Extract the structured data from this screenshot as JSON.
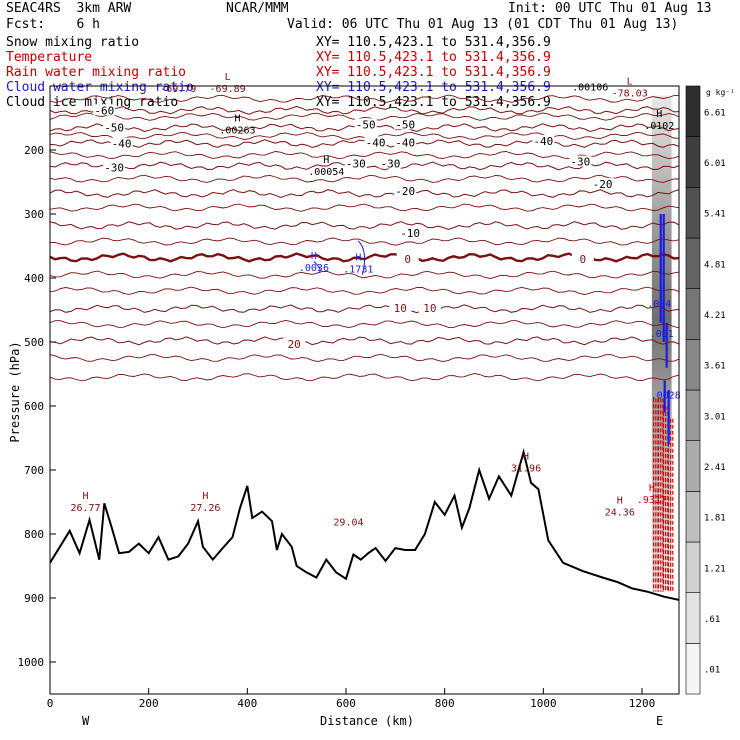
{
  "header": {
    "model_line": "SEAC4RS  3km ARW",
    "center": "NCAR/MMM",
    "init": "Init: 00 UTC Thu 01 Aug 13",
    "fcst": "Fcst:    6 h",
    "valid": "Valid: 06 UTC Thu 01 Aug 13 (01 CDT Thu 01 Aug 13)"
  },
  "fields": [
    {
      "label": "Snow mixing ratio",
      "xy": "XY= 110.5,423.1 to 531.4,356.9",
      "color": "#000000"
    },
    {
      "label": "Temperature",
      "xy": "XY= 110.5,423.1 to 531.4,356.9",
      "color": "#c00000"
    },
    {
      "label": "Rain water mixing ratio",
      "xy": "XY= 110.5,423.1 to 531.4,356.9",
      "color": "#c00000"
    },
    {
      "label": "Cloud water mixing ratio",
      "xy": "XY= 110.5,423.1 to 531.4,356.9",
      "color": "#1a1acc"
    },
    {
      "label": "Cloud ice mixing ratio",
      "xy": "XY= 110.5,423.1 to 531.4,356.9",
      "color": "#000000"
    }
  ],
  "colors": {
    "temperature": "#7a1010",
    "zero_isotherm": "#7a1010",
    "rain": "#d00000",
    "cloud_water": "#1a1ae0",
    "terrain": "#000000",
    "axis": "#000000"
  },
  "chart_data": {
    "type": "contour",
    "xlabel": "Distance (km)",
    "ylabel": "Pressure (hPa)",
    "xlim": [
      0,
      1275
    ],
    "ylim": [
      100,
      1050
    ],
    "x_ticks": [
      0,
      200,
      400,
      600,
      800,
      1000,
      1200
    ],
    "y_ticks": [
      200,
      300,
      400,
      500,
      600,
      700,
      800,
      900,
      1000
    ],
    "y_scale": "pressure (increasing downward)",
    "west_label": "W",
    "east_label": "E",
    "colorbar": {
      "unit": "g kg⁻¹",
      "labels": [
        ".01",
        ".61",
        "1.21",
        "1.81",
        "2.41",
        "3.01",
        "3.61",
        "4.21",
        "4.81",
        "5.41",
        "6.01",
        "6.61"
      ]
    },
    "temperature_contours": [
      {
        "value": -60,
        "p": 138
      },
      {
        "value": -50,
        "p": 165
      },
      {
        "value": -40,
        "p": 190
      },
      {
        "value": -30,
        "p": 225
      },
      {
        "value": -20,
        "p": 268
      },
      {
        "value": -10,
        "p": 318
      },
      {
        "value": 0,
        "p": 368
      },
      {
        "value": 10,
        "p": 448
      },
      {
        "value": 20,
        "p": 498
      }
    ],
    "temperature_labels": [
      {
        "text": "-60",
        "x": 110,
        "p": 138
      },
      {
        "text": "-50",
        "x": 130,
        "p": 165
      },
      {
        "text": "-40",
        "x": 145,
        "p": 190
      },
      {
        "text": "-30",
        "x": 130,
        "p": 227
      },
      {
        "text": "-50",
        "x": 640,
        "p": 160
      },
      {
        "text": "-50",
        "x": 720,
        "p": 160
      },
      {
        "text": "-40",
        "x": 660,
        "p": 188
      },
      {
        "text": "-40",
        "x": 720,
        "p": 188
      },
      {
        "text": "-40",
        "x": 1000,
        "p": 186
      },
      {
        "text": "-30",
        "x": 620,
        "p": 221
      },
      {
        "text": "-30",
        "x": 690,
        "p": 221
      },
      {
        "text": "-30",
        "x": 1075,
        "p": 218
      },
      {
        "text": "-20",
        "x": 720,
        "p": 264
      },
      {
        "text": "-20",
        "x": 1120,
        "p": 253
      },
      {
        "text": "-10",
        "x": 730,
        "p": 330
      },
      {
        "text": "0",
        "x": 725,
        "p": 370
      },
      {
        "text": "0",
        "x": 1080,
        "p": 370
      },
      {
        "text": "10",
        "x": 710,
        "p": 447
      },
      {
        "text": "10",
        "x": 770,
        "p": 447
      },
      {
        "text": "20",
        "x": 495,
        "p": 503
      }
    ],
    "extrema_labels": [
      {
        "mark": "L",
        "value": "-69.89",
        "x": 360,
        "p": 100
      },
      {
        "mark": "L",
        "value": "-78.03",
        "x": 1175,
        "p": 107
      },
      {
        "mark": "",
        "value": "-69.79",
        "x": 260,
        "p": 100
      },
      {
        "mark": "H",
        "value": ".00263",
        "x": 380,
        "p": 165
      },
      {
        "mark": "H",
        "value": ".00054",
        "x": 560,
        "p": 230
      },
      {
        "mark": "H",
        "value": ".0036",
        "x": 535,
        "p": 380
      },
      {
        "mark": "H",
        "value": ".1731",
        "x": 625,
        "p": 382
      },
      {
        "mark": "",
        "value": ".00106",
        "x": 1095,
        "p": 98
      },
      {
        "mark": "H",
        "value": ".0102",
        "x": 1235,
        "p": 158
      },
      {
        "mark": "H",
        "value": "26.77",
        "x": 72,
        "p": 755
      },
      {
        "mark": "H",
        "value": "27.26",
        "x": 315,
        "p": 755
      },
      {
        "mark": "",
        "value": "29.04",
        "x": 605,
        "p": 777
      },
      {
        "mark": "H",
        "value": "31.96",
        "x": 965,
        "p": 693
      },
      {
        "mark": "H",
        "value": "24.36",
        "x": 1155,
        "p": 762
      }
    ],
    "terrain_surface": [
      {
        "x": 0,
        "p": 845
      },
      {
        "x": 20,
        "p": 820
      },
      {
        "x": 40,
        "p": 795
      },
      {
        "x": 60,
        "p": 830
      },
      {
        "x": 80,
        "p": 778
      },
      {
        "x": 100,
        "p": 840
      },
      {
        "x": 110,
        "p": 752
      },
      {
        "x": 125,
        "p": 790
      },
      {
        "x": 140,
        "p": 830
      },
      {
        "x": 160,
        "p": 828
      },
      {
        "x": 180,
        "p": 815
      },
      {
        "x": 200,
        "p": 830
      },
      {
        "x": 220,
        "p": 805
      },
      {
        "x": 240,
        "p": 840
      },
      {
        "x": 260,
        "p": 835
      },
      {
        "x": 280,
        "p": 815
      },
      {
        "x": 300,
        "p": 780
      },
      {
        "x": 310,
        "p": 820
      },
      {
        "x": 330,
        "p": 840
      },
      {
        "x": 350,
        "p": 822
      },
      {
        "x": 370,
        "p": 805
      },
      {
        "x": 385,
        "p": 760
      },
      {
        "x": 400,
        "p": 725
      },
      {
        "x": 410,
        "p": 775
      },
      {
        "x": 430,
        "p": 765
      },
      {
        "x": 450,
        "p": 780
      },
      {
        "x": 460,
        "p": 825
      },
      {
        "x": 470,
        "p": 800
      },
      {
        "x": 490,
        "p": 820
      },
      {
        "x": 500,
        "p": 850
      },
      {
        "x": 520,
        "p": 860
      },
      {
        "x": 540,
        "p": 868
      },
      {
        "x": 560,
        "p": 840
      },
      {
        "x": 580,
        "p": 860
      },
      {
        "x": 600,
        "p": 870
      },
      {
        "x": 615,
        "p": 832
      },
      {
        "x": 630,
        "p": 840
      },
      {
        "x": 645,
        "p": 830
      },
      {
        "x": 660,
        "p": 822
      },
      {
        "x": 680,
        "p": 842
      },
      {
        "x": 700,
        "p": 822
      },
      {
        "x": 720,
        "p": 825
      },
      {
        "x": 740,
        "p": 825
      },
      {
        "x": 760,
        "p": 800
      },
      {
        "x": 780,
        "p": 750
      },
      {
        "x": 800,
        "p": 770
      },
      {
        "x": 820,
        "p": 740
      },
      {
        "x": 835,
        "p": 790
      },
      {
        "x": 850,
        "p": 760
      },
      {
        "x": 870,
        "p": 700
      },
      {
        "x": 890,
        "p": 745
      },
      {
        "x": 910,
        "p": 710
      },
      {
        "x": 935,
        "p": 740
      },
      {
        "x": 960,
        "p": 672
      },
      {
        "x": 975,
        "p": 720
      },
      {
        "x": 990,
        "p": 730
      },
      {
        "x": 1010,
        "p": 810
      },
      {
        "x": 1040,
        "p": 845
      },
      {
        "x": 1080,
        "p": 858
      },
      {
        "x": 1120,
        "p": 868
      },
      {
        "x": 1150,
        "p": 875
      },
      {
        "x": 1180,
        "p": 885
      },
      {
        "x": 1210,
        "p": 890
      },
      {
        "x": 1245,
        "p": 898
      },
      {
        "x": 1275,
        "p": 903
      }
    ],
    "cloud_column": {
      "x_range": [
        1220,
        1260
      ],
      "p_range": [
        115,
        890
      ],
      "max_value": 6.61
    },
    "rain_shafts": [
      {
        "x": 1228,
        "p_top": 588,
        "p_bottom": 890
      },
      {
        "x": 1238,
        "p_top": 588,
        "p_bottom": 890
      },
      {
        "x": 1248,
        "p_top": 600,
        "p_bottom": 888
      },
      {
        "x": 1258,
        "p_top": 620,
        "p_bottom": 890
      }
    ],
    "rain_label": {
      "mark": "H",
      "value": ".9317",
      "x": 1220,
      "p": 742
    },
    "cloud_water_labels": [
      {
        "value": ".004",
        "x": 1235,
        "p": 445
      },
      {
        "value": ".001",
        "x": 1240,
        "p": 492
      },
      {
        "value": ".0028",
        "x": 1248,
        "p": 588
      }
    ]
  }
}
